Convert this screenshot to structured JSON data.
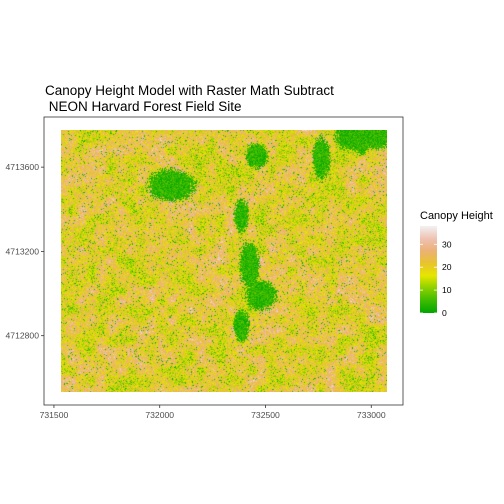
{
  "chart_data": {
    "type": "heatmap",
    "title": "Canopy Height Model with Raster Math Subtract",
    "subtitle": " NEON Harvard Forest Field Site",
    "xlabel": "",
    "ylabel": "",
    "x_ticks": [
      731500,
      732000,
      732500,
      733000
    ],
    "x_tick_labels": [
      "731500",
      "732000",
      "732500",
      "733000"
    ],
    "y_ticks": [
      4712800,
      4713200,
      4713600
    ],
    "y_tick_labels": [
      "4712800",
      "4713200",
      "4713600"
    ],
    "xlim": [
      731453,
      733150
    ],
    "ylim": [
      4712471,
      4713838
    ],
    "legend": {
      "title": "Canopy Height",
      "position": "right",
      "ticks": [
        0,
        10,
        20,
        30
      ],
      "tick_labels": [
        "0",
        "10",
        "20",
        "30"
      ],
      "range": [
        0,
        38
      ],
      "colors": [
        "#00A600",
        "#3EBB00",
        "#8BD000",
        "#E6E600",
        "#E8C32E",
        "#ECB176",
        "#EFC2B3",
        "#F2F2F2"
      ]
    },
    "panel": {
      "background": "#ffffff",
      "border": "#333333",
      "grid": false
    },
    "value_field": {
      "typical_range": [
        15,
        25
      ],
      "notes": "Dense per-pixel canopy height raster; mostly yellow/tan (~18-25) with green low areas (~0-8) in a central north-south wetland strip, a patch near (731900, 4713560), and larger dark green areas at the top-right."
    }
  }
}
